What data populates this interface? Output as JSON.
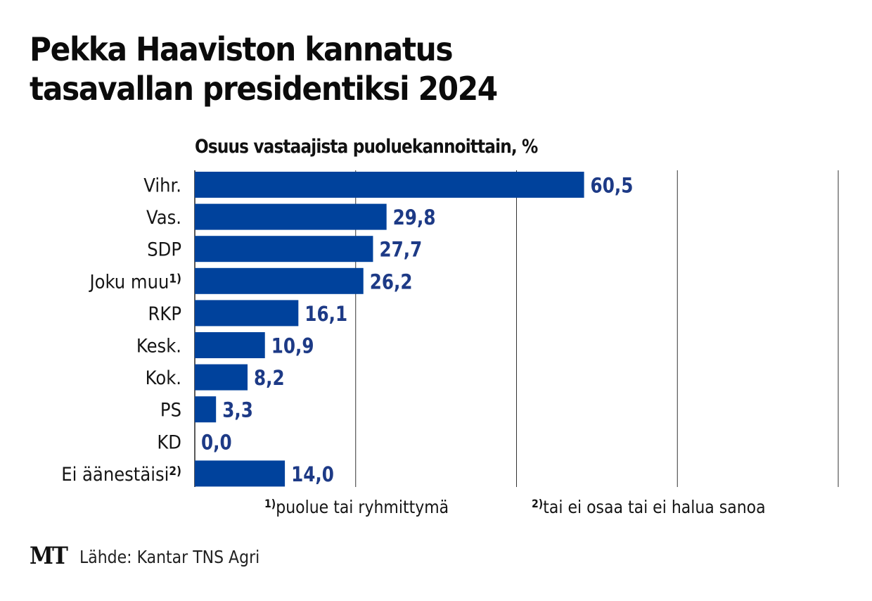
{
  "chart_data": {
    "type": "bar",
    "orientation": "horizontal",
    "title": "Pekka Haaviston kannatus tasavallan presidentiksi 2024",
    "subtitle": "Osuus vastaajista puoluekannoittain, %",
    "categories": [
      "Vihr.",
      "Vas.",
      "SDP",
      "Joku muu",
      "RKP",
      "Kesk.",
      "Kok.",
      "PS",
      "KD",
      "Ei äänestäisi"
    ],
    "category_footnotes": [
      "",
      "",
      "",
      "1)",
      "",
      "",
      "",
      "",
      "",
      "2)"
    ],
    "values": [
      60.5,
      29.8,
      27.7,
      26.2,
      16.1,
      10.9,
      8.2,
      3.3,
      0.0,
      14.0
    ],
    "value_labels": [
      "60,5",
      "29,8",
      "27,7",
      "26,2",
      "16,1",
      "10,9",
      "8,2",
      "3,3",
      "0,0",
      "14,0"
    ],
    "xlim": [
      0,
      100
    ],
    "gridlines": [
      0,
      25,
      50,
      75,
      100
    ],
    "grid": true,
    "xlabel": "",
    "ylabel": "",
    "bar_color": "#00429c",
    "label_color": "#1d3a86"
  },
  "footnotes": [
    {
      "mark": "1)",
      "text": "puolue tai ryhmittymä"
    },
    {
      "mark": "2)",
      "text": "tai ei osaa tai ei halua sanoa"
    }
  ],
  "logo": "MT",
  "source": "Lähde: Kantar TNS Agri",
  "title_lines": [
    "Pekka Haaviston kannatus",
    "tasavallan presidentiksi 2024"
  ]
}
